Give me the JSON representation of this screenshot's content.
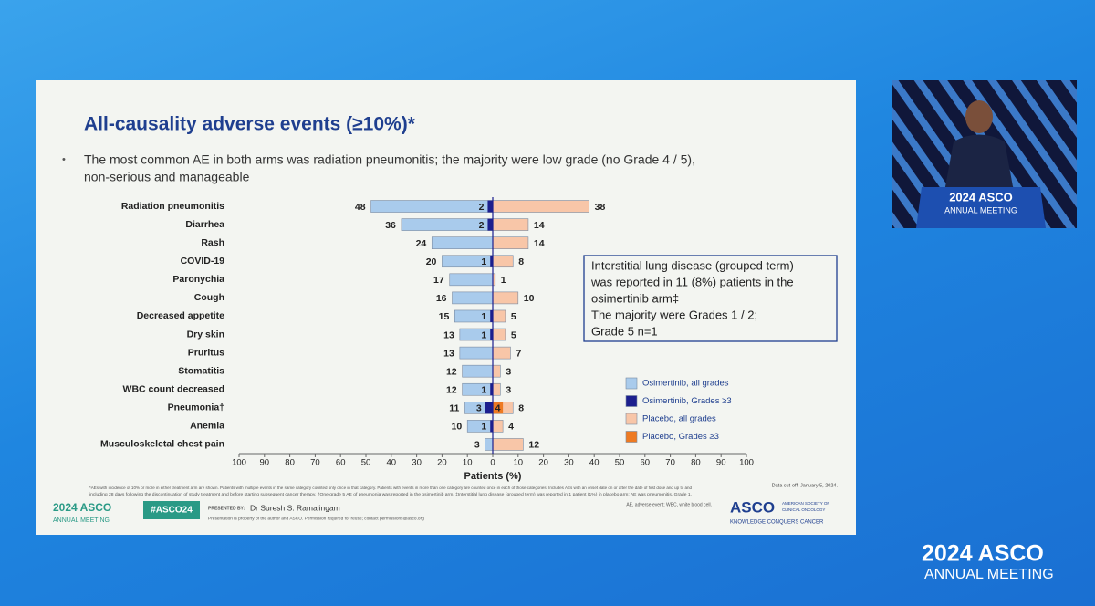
{
  "slide": {
    "title": "All-causality adverse events (≥10%)*",
    "bullet": [
      "The most common AE in both arms was radiation pneumonitis; the majority were low grade (no Grade 4 / 5),",
      "non-serious and manageable"
    ],
    "callout": [
      "Interstitial lung disease (grouped term)",
      "was reported in 11 (8%) patients in the",
      "osimertinib arm‡",
      "The majority were Grades 1 / 2;",
      "Grade 5 n=1"
    ],
    "footnote": [
      "*AEs with incidence of 10% or more in either treatment arm are shown. Patients with multiple events in the same category counted only once in that category. Patients with events in more than one category are counted once in each of those categories. Includes AEs with an onset date on or after the date of first dose and up to and",
      "including 28 days following the discontinuation of study treatment and before starting subsequent cancer therapy. †One grade 5 AE of pneumonia was reported in the osimertinib arm. ‡Interstitial lung disease (grouped term) was reported in 1 patient (1%) in placebo arm; AE was pneumonitis, Grade 1."
    ],
    "cutoff": "Data cut-off: January 5, 2024.",
    "abbrev": "AE, adverse event; WBC, white blood cell.",
    "presented_by": "PRESENTED BY:",
    "presenter": "Dr Suresh S. Ramalingam",
    "property": "Presentation is property of the author and ASCO. Permission required for reuse; contact permissions@asco.org",
    "hashtag": "#ASCO24",
    "asco": "ASCO",
    "society": [
      "AMERICAN SOCIETY OF",
      "CLINICAL ONCOLOGY"
    ],
    "motto": "KNOWLEDGE CONQUERS CANCER"
  },
  "branding": {
    "year_asco": "2024 ASCO",
    "meeting": "ANNUAL MEETING"
  },
  "chart_data": {
    "type": "butterfly",
    "xlabel": "Patients (%)",
    "categories": [
      "Radiation pneumonitis",
      "Diarrhea",
      "Rash",
      "COVID-19",
      "Paronychia",
      "Cough",
      "Decreased appetite",
      "Dry skin",
      "Pruritus",
      "Stomatitis",
      "WBC count decreased",
      "Pneumonia†",
      "Anemia",
      "Musculoskeletal chest pain"
    ],
    "series": [
      {
        "name": "Osimertinib, all grades",
        "color": "#a9cbec",
        "side": "left",
        "values": [
          48,
          36,
          24,
          20,
          17,
          16,
          15,
          13,
          13,
          12,
          12,
          11,
          10,
          3
        ]
      },
      {
        "name": "Osimertinib, Grades ≥3",
        "color": "#1c1f8e",
        "side": "left",
        "values": [
          2,
          2,
          null,
          1,
          null,
          null,
          1,
          1,
          null,
          null,
          1,
          3,
          1,
          null
        ]
      },
      {
        "name": "Placebo, all grades",
        "color": "#f8c6a8",
        "side": "right",
        "values": [
          38,
          14,
          14,
          8,
          1,
          10,
          5,
          5,
          7,
          3,
          3,
          8,
          4,
          12
        ]
      },
      {
        "name": "Placebo, Grades ≥3",
        "color": "#ee7a22",
        "side": "right",
        "values": [
          null,
          null,
          null,
          null,
          null,
          null,
          null,
          null,
          null,
          null,
          null,
          4,
          null,
          null
        ]
      }
    ],
    "xlim": [
      -100,
      100
    ],
    "xticks": [
      {
        "value": -100,
        "label": "100"
      },
      {
        "value": -90,
        "label": "90"
      },
      {
        "value": -80,
        "label": "80"
      },
      {
        "value": -70,
        "label": "70"
      },
      {
        "value": -60,
        "label": "60"
      },
      {
        "value": -50,
        "label": "50"
      },
      {
        "value": -40,
        "label": "40"
      },
      {
        "value": -30,
        "label": "30"
      },
      {
        "value": -20,
        "label": "20"
      },
      {
        "value": -10,
        "label": "10"
      },
      0,
      10,
      20,
      30,
      40,
      50,
      60,
      70,
      80,
      90,
      100
    ],
    "legend": "lower-right"
  }
}
